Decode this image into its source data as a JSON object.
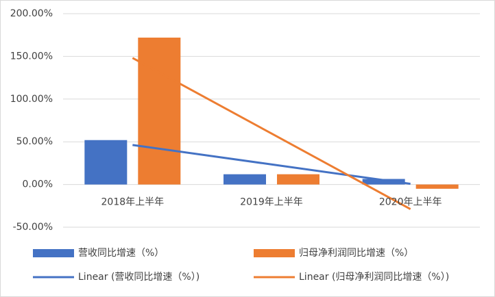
{
  "chart_data": {
    "type": "bar",
    "categories": [
      "2018年上半年",
      "2019年上半年",
      "2020年上半年"
    ],
    "series": [
      {
        "name": "营收同比增速（%）",
        "color": "#4472c4",
        "type": "bar",
        "values": [
          52,
          12,
          6.5
        ]
      },
      {
        "name": "归母净利润同比增速（%）",
        "color": "#ed7d31",
        "type": "bar",
        "values": [
          172,
          12,
          -5
        ]
      },
      {
        "name": "Linear (营收同比增速（%）)",
        "color": "#4472c4",
        "type": "line",
        "values": [
          46.25,
          23.5,
          0.75
        ]
      },
      {
        "name": "Linear (归母净利润同比增速（%）)",
        "color": "#ed7d31",
        "type": "line",
        "values": [
          148.2,
          59.7,
          -28.8
        ]
      }
    ],
    "ylim": [
      -50,
      200
    ],
    "yticks": [
      {
        "value": -50,
        "label": "-50.00%"
      },
      {
        "value": 0,
        "label": "0.00%"
      },
      {
        "value": 50,
        "label": "50.00%"
      },
      {
        "value": 100,
        "label": "100.00%"
      },
      {
        "value": 150,
        "label": "150.00%"
      },
      {
        "value": 200,
        "label": "200.00%"
      }
    ],
    "grid": true
  }
}
